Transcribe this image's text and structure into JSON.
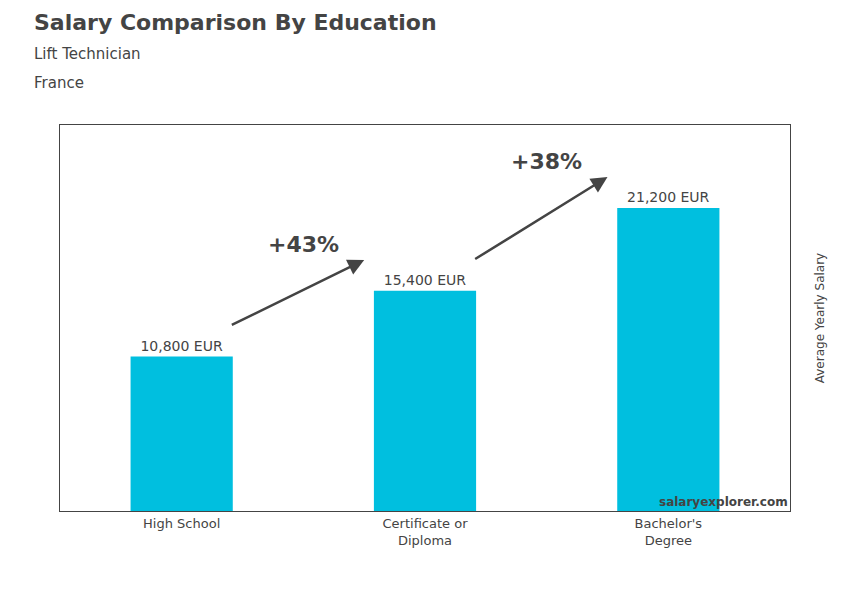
{
  "chart_data": {
    "type": "bar",
    "title": "Salary Comparison By Education",
    "subtitle": [
      "Lift Technician",
      "France"
    ],
    "ylabel": "Average Yearly Salary",
    "categories": [
      "High School",
      "Certificate or\nDiploma",
      "Bachelor's\nDegree"
    ],
    "values": [
      10800,
      15400,
      21200
    ],
    "value_labels": [
      "10,800 EUR",
      "15,400 EUR",
      "21,200 EUR"
    ],
    "data_labels": true,
    "color": "#00BFDF",
    "ylim": [
      0,
      27000
    ],
    "tick_labels": "x",
    "grid": false,
    "annotations": [
      "+43%",
      "+38%"
    ],
    "source": "salaryexplorer.com"
  }
}
